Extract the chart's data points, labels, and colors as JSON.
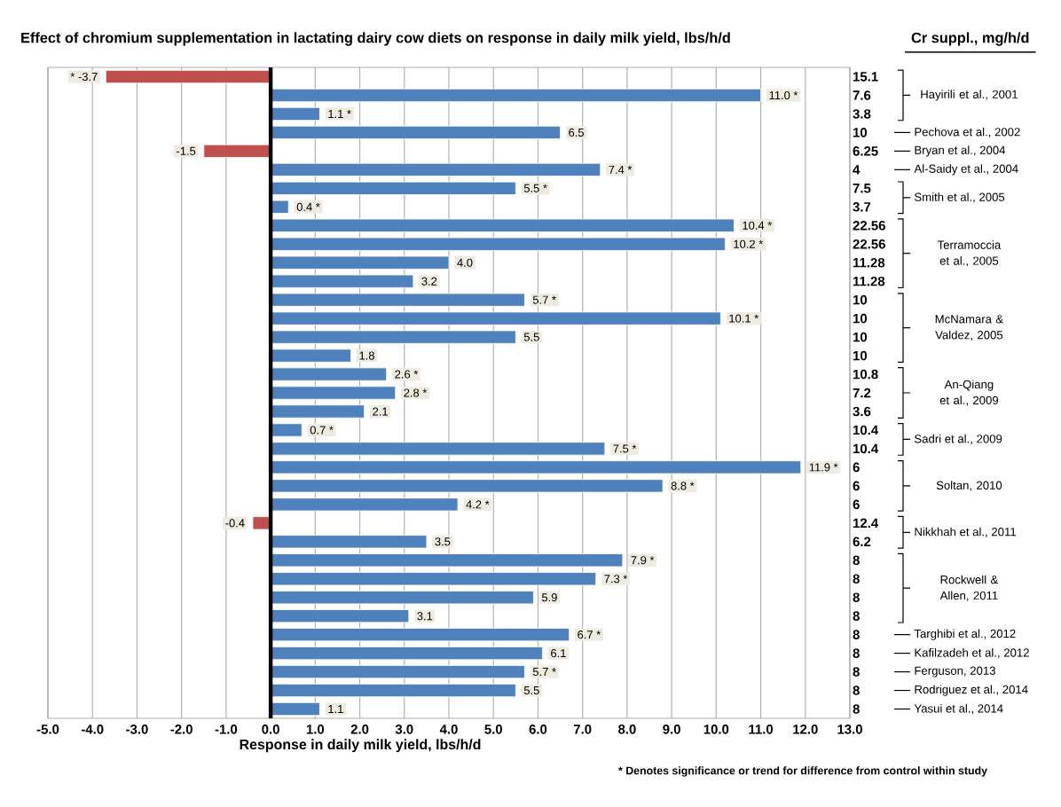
{
  "chart_data": {
    "type": "bar",
    "orientation": "horizontal",
    "title": "Effect of chromium supplementation in lactating dairy cow diets on response in daily milk yield, lbs/h/d",
    "ylabel": "Cr suppl., mg/h/d",
    "xlabel": "Response in daily milk yield, lbs/h/d",
    "categories": [
      "15.1",
      "7.6",
      "3.8",
      "10",
      "6.25",
      "4",
      "7.5",
      "3.7",
      "22.56",
      "22.56",
      "11.28",
      "11.28",
      "10",
      "10",
      "10",
      "10",
      "10.8",
      "7.2",
      "3.6",
      "10.4",
      "10.4",
      "6",
      "6",
      "6",
      "12.4",
      "6.2",
      "8",
      "8",
      "8",
      "8",
      "8",
      "8",
      "8",
      "8",
      "8"
    ],
    "values": [
      -3.7,
      11.0,
      1.1,
      6.5,
      -1.5,
      7.4,
      5.5,
      0.4,
      10.4,
      10.2,
      4.0,
      3.2,
      5.7,
      10.1,
      5.5,
      1.8,
      2.6,
      2.8,
      2.1,
      0.7,
      7.5,
      11.9,
      8.8,
      4.2,
      -0.4,
      3.5,
      7.9,
      7.3,
      5.9,
      3.1,
      6.7,
      6.1,
      5.7,
      5.5,
      1.1
    ],
    "value_labels": [
      "* -3.7",
      "11.0 *",
      "1.1 *",
      "6.5",
      "-1.5",
      "7.4 *",
      "5.5 *",
      "0.4 *",
      "10.4 *",
      "10.2 *",
      "4.0",
      "3.2",
      "5.7 *",
      "10.1 *",
      "5.5",
      "1.8",
      "2.6 *",
      "2.8 *",
      "2.1",
      "0.7 *",
      "7.5 *",
      "11.9 *",
      "8.8 *",
      "4.2 *",
      "-0.4",
      "3.5",
      "7.9 *",
      "7.3 *",
      "5.9",
      "3.1",
      "6.7 *",
      "6.1",
      "5.7 *",
      "5.5",
      "1.1"
    ],
    "colors": [
      "#c0504d",
      "#4f81bd",
      "#4f81bd",
      "#4f81bd",
      "#c0504d",
      "#4f81bd",
      "#4f81bd",
      "#4f81bd",
      "#4f81bd",
      "#4f81bd",
      "#4f81bd",
      "#4f81bd",
      "#4f81bd",
      "#4f81bd",
      "#4f81bd",
      "#4f81bd",
      "#4f81bd",
      "#4f81bd",
      "#4f81bd",
      "#4f81bd",
      "#4f81bd",
      "#4f81bd",
      "#4f81bd",
      "#4f81bd",
      "#c0504d",
      "#4f81bd",
      "#4f81bd",
      "#4f81bd",
      "#4f81bd",
      "#4f81bd",
      "#4f81bd",
      "#4f81bd",
      "#4f81bd",
      "#4f81bd",
      "#4f81bd"
    ],
    "xlim": [
      -5,
      13
    ],
    "xticks": [
      {
        "value": -5,
        "label": "-5.0"
      },
      {
        "value": -4,
        "label": "-4.0"
      },
      {
        "value": -3,
        "label": "-3.0"
      },
      {
        "value": -2,
        "label": "-2.0"
      },
      {
        "value": -1,
        "label": "-1.0"
      },
      {
        "value": 0,
        "label": "0.0"
      },
      {
        "value": 1,
        "label": "1.0"
      },
      {
        "value": 2,
        "label": "2.0"
      },
      {
        "value": 3,
        "label": "3.0"
      },
      {
        "value": 4,
        "label": "4.0"
      },
      {
        "value": 5,
        "label": "5.0"
      },
      {
        "value": 6,
        "label": "6.0"
      },
      {
        "value": 7,
        "label": "7.0"
      },
      {
        "value": 8,
        "label": "8.0"
      },
      {
        "value": 9,
        "label": "9.0"
      },
      {
        "value": 10,
        "label": "10.0"
      },
      {
        "value": 11,
        "label": "11.0"
      },
      {
        "value": 12,
        "label": "12.0"
      },
      {
        "value": 13,
        "label": "13.0"
      }
    ],
    "grid": "x",
    "annotations": [
      "Hayirili et al., 2001",
      "Pechova et al., 2002",
      "Bryan et al., 2004",
      "Al-Saidy et al., 2004",
      "Smith et al., 2005",
      "Terramoccia et al., 2005",
      "McNamara & Valdez, 2005",
      "An-Qiang et al., 2009",
      "Sadri et al., 2009",
      "Soltan, 2010",
      "Nikkhah et al., 2011",
      "Rockwell & Allen, 2011",
      "Targhibi et al., 2012",
      "Kafilzadeh et al., 2012",
      "Ferguson, 2013",
      "Rodriguez et al., 2014",
      "Yasui et al., 2014",
      "* Denotes significance or trend for difference from control within study"
    ]
  }
}
